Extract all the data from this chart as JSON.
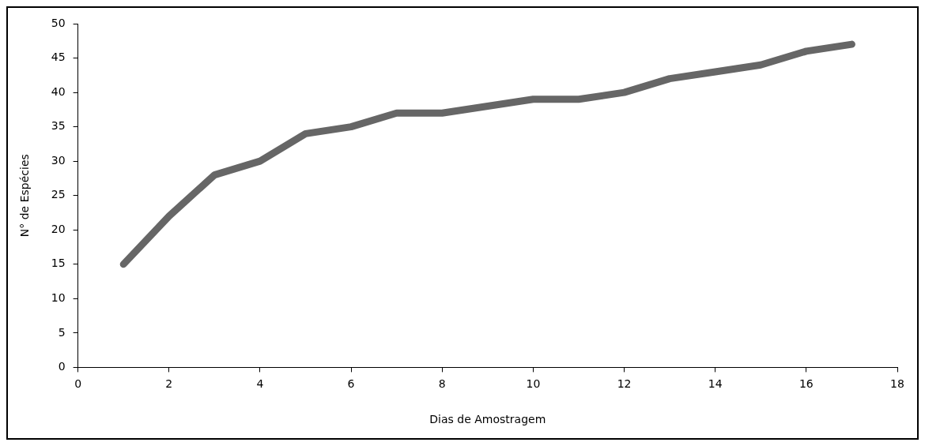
{
  "chart_data": {
    "type": "line",
    "xlabel": "Dias de Amostragem",
    "ylabel": "N° de Espécies",
    "x": [
      1,
      2,
      3,
      4,
      5,
      6,
      7,
      8,
      9,
      10,
      11,
      12,
      13,
      14,
      15,
      16,
      17
    ],
    "series": [
      {
        "color": "#666666",
        "values": [
          15,
          22,
          28,
          30,
          34,
          35,
          37,
          37,
          38,
          39,
          39,
          40,
          42,
          43,
          44,
          46,
          47
        ]
      }
    ],
    "xlim": [
      0,
      18
    ],
    "xticks": [
      0,
      2,
      4,
      6,
      8,
      10,
      12,
      14,
      16,
      18
    ],
    "ylim": [
      0,
      50
    ],
    "yticks": [
      0,
      5,
      10,
      15,
      20,
      25,
      30,
      35,
      40,
      45,
      50
    ],
    "grid": false,
    "legend": false,
    "marker": "none",
    "line_style": "solid"
  }
}
